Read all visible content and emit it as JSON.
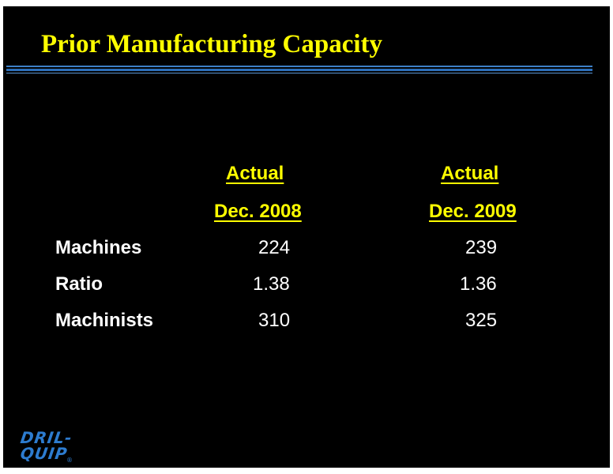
{
  "slide": {
    "title": "Prior Manufacturing Capacity",
    "columns": [
      {
        "header_line1": "Actual",
        "header_line2": "Dec. 2008"
      },
      {
        "header_line1": "Actual",
        "header_line2": "Dec. 2009"
      }
    ],
    "rows": [
      {
        "label": "Machines",
        "values": [
          "224",
          "239"
        ]
      },
      {
        "label": "Ratio",
        "values": [
          "1.38",
          "1.36"
        ]
      },
      {
        "label": "Machinists",
        "values": [
          "310",
          "325"
        ]
      }
    ]
  },
  "logo": {
    "text_line1": "DRIL-",
    "text_line2": "QUIP",
    "registered": "®"
  },
  "colors": {
    "background": "#000000",
    "title": "#ffff00",
    "rule": "#3d7fc6",
    "text": "#ffffff",
    "logo": "#2d7cd0"
  }
}
